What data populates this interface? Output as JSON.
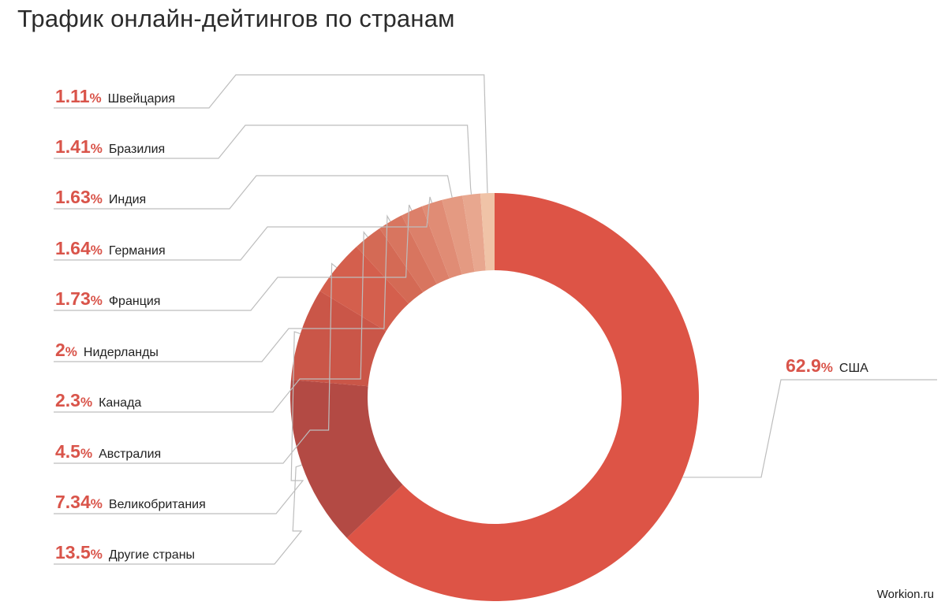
{
  "watermark": "Workion.ru",
  "chart_data": {
    "type": "pie",
    "variant": "donut",
    "title": "Трафик онлайн-дейтингов по странам",
    "value_suffix": "%",
    "slices": [
      {
        "label": "США",
        "value": 62.9,
        "display": "62.9",
        "color": "#dd5446"
      },
      {
        "label": "Другие страны",
        "value": 13.5,
        "display": "13.5",
        "color": "#b34a44"
      },
      {
        "label": "Великобритания",
        "value": 7.34,
        "display": "7.34",
        "color": "#ca5648"
      },
      {
        "label": "Австралия",
        "value": 4.5,
        "display": "4.5",
        "color": "#d45f4d"
      },
      {
        "label": "Канада",
        "value": 2.3,
        "display": "2.3",
        "color": "#d46a55"
      },
      {
        "label": "Нидерланды",
        "value": 2,
        "display": "2",
        "color": "#d8755f"
      },
      {
        "label": "Франция",
        "value": 1.73,
        "display": "1.73",
        "color": "#dc806a"
      },
      {
        "label": "Германия",
        "value": 1.64,
        "display": "1.64",
        "color": "#e08c75"
      },
      {
        "label": "Индия",
        "value": 1.63,
        "display": "1.63",
        "color": "#e49a82"
      },
      {
        "label": "Бразилия",
        "value": 1.41,
        "display": "1.41",
        "color": "#e8a78f"
      },
      {
        "label": "Швейцария",
        "value": 1.11,
        "display": "1.11",
        "color": "#f0c3a7"
      }
    ]
  }
}
